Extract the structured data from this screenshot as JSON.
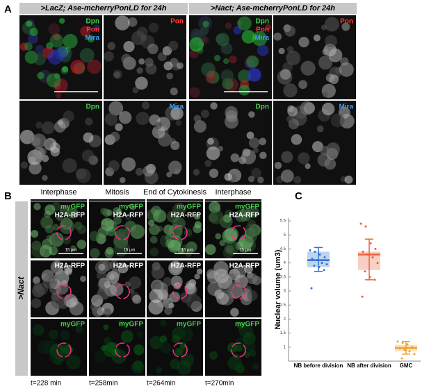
{
  "panel_a": {
    "letter": "A",
    "headers": [
      ">LacZ; Ase-mcherryPonLD for 24h",
      ">Nact; Ase-mcherryPonLD for 24h"
    ],
    "images": [
      {
        "labels": [
          {
            "text": "Dpn",
            "color": "#3fd14a"
          },
          {
            "text": "Pon",
            "color": "#ff3b3b"
          },
          {
            "text": "Mira",
            "color": "#3aa0ff"
          }
        ]
      },
      {
        "labels": [
          {
            "text": "Pon",
            "color": "#ff3b3b"
          }
        ]
      },
      {
        "labels": [
          {
            "text": "Dpn",
            "color": "#3fd14a"
          },
          {
            "text": "Pon",
            "color": "#ff3b3b"
          },
          {
            "text": "Mira",
            "color": "#3aa0ff"
          }
        ]
      },
      {
        "labels": [
          {
            "text": "Pon",
            "color": "#ff3b3b"
          }
        ]
      },
      {
        "labels": [
          {
            "text": "Dpn",
            "color": "#3fd14a"
          }
        ]
      },
      {
        "labels": [
          {
            "text": "Mira",
            "color": "#3aa0ff"
          }
        ]
      },
      {
        "labels": [
          {
            "text": "Dpn",
            "color": "#3fd14a"
          }
        ]
      },
      {
        "labels": [
          {
            "text": "Mira",
            "color": "#3aa0ff"
          }
        ]
      }
    ]
  },
  "panel_b": {
    "letter": "B",
    "side_label": ">Nact",
    "columns": [
      "Interphase",
      "Mitosis",
      "End of Cytokinesis",
      "Interphase"
    ],
    "rows": [
      {
        "labels": [
          {
            "text": "myGFP",
            "color": "#3fd14a"
          },
          {
            "text": "H2A-RFP",
            "color": "#ffffff"
          }
        ],
        "scale_bar": "15 µm"
      },
      {
        "labels": [
          {
            "text": "H2A-RFP",
            "color": "#ffffff"
          }
        ]
      },
      {
        "labels": [
          {
            "text": "myGFP",
            "color": "#3fd14a"
          }
        ]
      }
    ],
    "times": [
      "t=228 min",
      "t=258min",
      "t=264min",
      "t=270min"
    ]
  },
  "chart_data": {
    "type": "box",
    "letter": "C",
    "ylabel": "Nuclear volume (um3)",
    "categories": [
      "NB before division",
      "NB after division",
      "GMC"
    ],
    "colors": [
      "#2f6fcf",
      "#e8603a",
      "#f0a030"
    ],
    "means": [
      4.1,
      4.3,
      0.97
    ],
    "box_low": [
      3.85,
      3.75,
      0.85
    ],
    "box_high": [
      4.4,
      4.4,
      1.08
    ],
    "whisker_low": [
      3.7,
      3.4,
      0.75
    ],
    "whisker_high": [
      4.55,
      4.85,
      1.2
    ],
    "points": [
      [
        4.45,
        4.4,
        4.3,
        4.2,
        4.15,
        4.1,
        4.0,
        3.95,
        3.9,
        3.85,
        3.75,
        3.1
      ],
      [
        5.4,
        5.3,
        4.7,
        4.5,
        4.4,
        4.3,
        4.2,
        4.0,
        3.7,
        3.5,
        3.4,
        2.8
      ],
      [
        1.2,
        1.15,
        1.1,
        1.0,
        0.95,
        0.9,
        0.85,
        0.75,
        0.6
      ]
    ],
    "ylim": [
      0.5,
      5.6
    ],
    "yticks": [
      1,
      1.5,
      2,
      2.5,
      3,
      3.5,
      4,
      4.5,
      5,
      5.5
    ]
  }
}
